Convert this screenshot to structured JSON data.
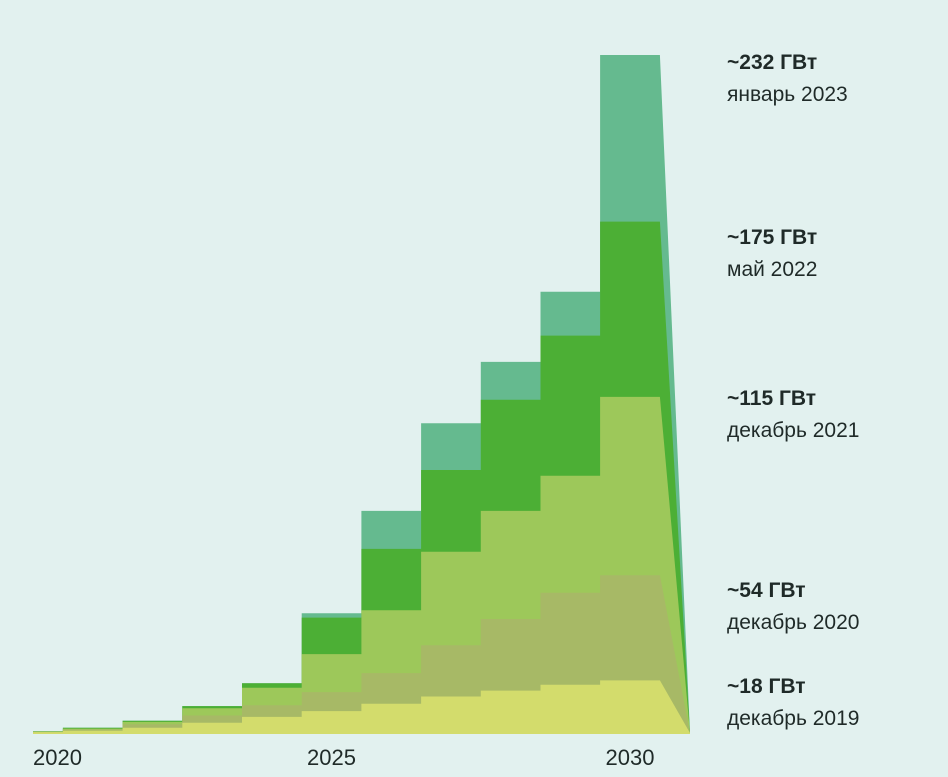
{
  "chart_data": {
    "type": "area",
    "stacked": true,
    "x_ticks": [
      "2020",
      "2025",
      "2030"
    ],
    "years": [
      2020,
      2021,
      2022,
      2023,
      2024,
      2025,
      2026,
      2027,
      2028,
      2029,
      2030
    ],
    "ylim": [
      0,
      232
    ],
    "series": [
      {
        "value_label": "~18 ГВт",
        "date_label": "декабрь 2019",
        "color": "#d3dc6c",
        "values": [
          0.3,
          0.8,
          1.8,
          3.5,
          5.5,
          7.5,
          10,
          12.5,
          14.5,
          16.5,
          18
        ]
      },
      {
        "value_label": "~54 ГВт",
        "date_label": "декабрь 2020",
        "color": "#a7b966",
        "values": [
          0.4,
          1.2,
          3,
          6,
          9.5,
          14,
          20.5,
          30,
          39,
          48,
          54
        ]
      },
      {
        "value_label": "~115 ГВт",
        "date_label": "декабрь 2021",
        "color": "#9dc85a",
        "values": [
          0.5,
          1.5,
          3.8,
          8.5,
          15.5,
          27,
          42,
          62,
          76,
          88,
          115
        ]
      },
      {
        "value_label": "~175 ГВт",
        "date_label": "май 2022",
        "color": "#4caf35",
        "values": [
          0.6,
          1.8,
          4.2,
          9.2,
          17,
          39.5,
          63,
          90,
          114,
          136,
          175
        ]
      },
      {
        "value_label": "~232 ГВт",
        "date_label": "январь 2023",
        "color": "#65ba8f",
        "values": [
          0.6,
          1.8,
          4.2,
          9.2,
          17,
          41,
          76,
          106,
          127,
          151,
          232
        ]
      }
    ]
  }
}
